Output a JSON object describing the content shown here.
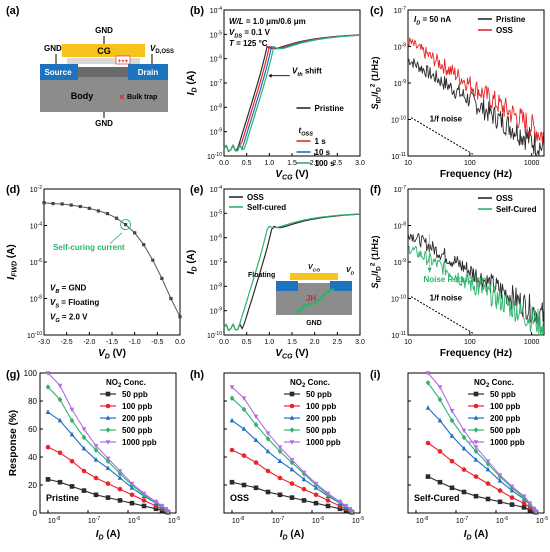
{
  "panel_labels": [
    "(a)",
    "(b)",
    "(c)",
    "(d)",
    "(e)",
    "(f)",
    "(g)",
    "(h)",
    "(i)"
  ],
  "colors": {
    "black": "#2b2b2b",
    "red": "#e8262a",
    "blue": "#1f6fc4",
    "green": "#2db36b",
    "purple": "#b46be6",
    "gold": "#f7c21a",
    "blue_region": "#1e73be",
    "body_gray": "#8c8c8c",
    "trap": "#e02020"
  },
  "device": {
    "gnd_top": "GND",
    "gnd_left": "GND",
    "gnd_bottom": "GND",
    "cg": "CG",
    "vd_oss": "V",
    "vd_oss_sub": "D,OSS",
    "source": "Source",
    "drain": "Drain",
    "body": "Body",
    "bulk_trap": "Bulk trap"
  },
  "inset_e": {
    "floating": "Floating",
    "vcg": "V",
    "vcg_sub": "CG",
    "vd": "V",
    "vd_sub": "D",
    "jh": "JH",
    "gnd": "GND"
  },
  "chart_data": [
    {
      "panel": "b",
      "type": "line",
      "xlabel": "V",
      "xlabel_sub": "CG",
      "xlabel_unit": " (V)",
      "ylabel": "I",
      "ylabel_sub": "D",
      "ylabel_unit": " (A)",
      "xlim": [
        0.0,
        3.0
      ],
      "ylim_log10": [
        -10,
        -4
      ],
      "xticks": [
        "0.0",
        "0.5",
        "1.0",
        "1.5",
        "2.0",
        "2.5",
        "3.0"
      ],
      "yticks_exp": [
        "-10",
        "-9",
        "-8",
        "-7",
        "-6",
        "-5",
        "-4"
      ],
      "annotations": [
        "W/L = 1.0 μm/0.6 μm",
        "V_DS = 0.1 V",
        "T = 125 °C",
        "V_th shift",
        "t_OSS"
      ],
      "legend_title": "t_OSS",
      "series": [
        {
          "name": "Pristine",
          "color": "black",
          "vth": 0.9
        },
        {
          "name": "1 s",
          "color": "red",
          "vth": 0.95
        },
        {
          "name": "10 s",
          "color": "blue",
          "vth": 1.0
        },
        {
          "name": "100 s",
          "color": "green",
          "vth": 1.05
        }
      ],
      "curve": {
        "ioff_log10": -9.7,
        "ion_log10": -4.95,
        "ss_decades_per_v": 6.0
      }
    },
    {
      "panel": "c",
      "type": "line",
      "xlabel": "Frequency (Hz)",
      "ylabel": "S_ID/I_D^2 (1/Hz)",
      "xlim_log10": [
        1,
        3.2
      ],
      "ylim_log10": [
        -11,
        -7
      ],
      "xticks": [
        "10",
        "100",
        "1000"
      ],
      "yticks_exp": [
        "-11",
        "-10",
        "-9",
        "-8",
        "-7"
      ],
      "annotations": [
        "I_D = 50 nA",
        "1/f noise"
      ],
      "series": [
        {
          "name": "Pristine",
          "color": "black",
          "start_log10": -8.35,
          "end_log10": -10.8
        },
        {
          "name": "OSS",
          "color": "red",
          "start_log10": -7.85,
          "end_log10": -10.45
        }
      ]
    },
    {
      "panel": "d",
      "type": "line",
      "xlabel": "V_D (V)",
      "ylabel": "I_FWD (A)",
      "xlim": [
        -3.0,
        0.0
      ],
      "ylim_log10": [
        -10,
        -2
      ],
      "xticks": [
        "-3.0",
        "-2.5",
        "-2.0",
        "-1.5",
        "-1.0",
        "-0.5",
        "0.0"
      ],
      "yticks_exp": [
        "-10",
        "-8",
        "-6",
        "-4",
        "-2"
      ],
      "annotations": [
        "Self-curing current",
        "V_B = GND",
        "V_S = Floating",
        "V_G = 2.0 V"
      ],
      "x": [
        -3.0,
        -2.8,
        -2.6,
        -2.4,
        -2.2,
        -2.0,
        -1.8,
        -1.6,
        -1.4,
        -1.2,
        -1.0,
        -0.8,
        -0.6,
        -0.4,
        -0.2,
        0.0
      ],
      "y_log10": [
        -2.75,
        -2.8,
        -2.82,
        -2.88,
        -2.96,
        -3.06,
        -3.2,
        -3.35,
        -3.6,
        -3.95,
        -4.4,
        -5.05,
        -5.9,
        -6.9,
        -8.0,
        -9.0
      ]
    },
    {
      "panel": "e",
      "type": "line",
      "xlabel": "V",
      "xlabel_sub": "CG",
      "xlabel_unit": " (V)",
      "ylabel": "I",
      "ylabel_sub": "D",
      "ylabel_unit": " (A)",
      "xlim": [
        0.0,
        3.0
      ],
      "ylim_log10": [
        -10,
        -4
      ],
      "xticks": [
        "0.0",
        "0.5",
        "1.0",
        "1.5",
        "2.0",
        "2.5",
        "3.0"
      ],
      "yticks_exp": [
        "-10",
        "-9",
        "-8",
        "-7",
        "-6",
        "-5",
        "-4"
      ],
      "series": [
        {
          "name": "OSS",
          "color": "black",
          "vth": 1.02
        },
        {
          "name": "Self-cured",
          "color": "green",
          "vth": 0.92
        }
      ],
      "curve": {
        "ioff_log10": -9.7,
        "ion_log10": -4.95,
        "ss_decades_per_v": 6.0
      }
    },
    {
      "panel": "f",
      "type": "line",
      "xlabel": "Frequency (Hz)",
      "ylabel": "S_ID/I_D^2 (1/Hz)",
      "xlim_log10": [
        1,
        3.2
      ],
      "ylim_log10": [
        -11,
        -7
      ],
      "xticks": [
        "10",
        "100",
        "1000"
      ],
      "yticks_exp": [
        "-11",
        "-10",
        "-9",
        "-8",
        "-7"
      ],
      "annotations": [
        "Noise Reduction",
        "1/f noise"
      ],
      "series": [
        {
          "name": "OSS",
          "color": "black",
          "start_log10": -8.2,
          "end_log10": -10.5
        },
        {
          "name": "Self-Cured",
          "color": "green",
          "start_log10": -8.6,
          "end_log10": -10.75
        }
      ]
    },
    {
      "panel": "g",
      "type": "line",
      "label": "Pristine",
      "xlabel": "I_D (A)",
      "ylabel": "Response (%)",
      "xlim_log10": [
        -8.2,
        -4.8
      ],
      "ylim": [
        0,
        100
      ],
      "xticks": [
        "10^-8",
        "10^-7",
        "10^-6",
        "10^-5"
      ],
      "yticks": [
        "0",
        "20",
        "40",
        "60",
        "80",
        "100"
      ],
      "legend_title": "NO2 Conc.",
      "x_log10": [
        -8.0,
        -7.7,
        -7.4,
        -7.1,
        -6.8,
        -6.5,
        -6.2,
        -5.9,
        -5.6,
        -5.3,
        -5.15,
        -5.05,
        -5.0
      ],
      "series": [
        {
          "name": "50 ppb",
          "color": "black",
          "values": [
            24,
            22,
            19,
            16,
            13,
            11,
            9,
            7,
            5,
            3,
            2,
            1,
            0.5
          ]
        },
        {
          "name": "100 ppb",
          "color": "red",
          "values": [
            47,
            43,
            37,
            30,
            25,
            21,
            17,
            13,
            9,
            5,
            3,
            2,
            1
          ]
        },
        {
          "name": "200 ppb",
          "color": "blue",
          "values": [
            72,
            66,
            56,
            46,
            38,
            32,
            25,
            18,
            12,
            7,
            4,
            2,
            1
          ]
        },
        {
          "name": "500 ppb",
          "color": "green",
          "values": [
            90,
            81,
            66,
            54,
            45,
            37,
            28,
            20,
            13,
            8,
            5,
            2,
            1
          ]
        },
        {
          "name": "1000 ppb",
          "color": "purple",
          "values": [
            100,
            91,
            74,
            60,
            48,
            39,
            30,
            21,
            14,
            8,
            5,
            3,
            1
          ]
        }
      ]
    },
    {
      "panel": "h",
      "type": "line",
      "label": "OSS",
      "xlabel": "I_D (A)",
      "xlim_log10": [
        -8.2,
        -4.8
      ],
      "ylim": [
        0,
        100
      ],
      "xticks": [
        "10^-8",
        "10^-7",
        "10^-6",
        "10^-5"
      ],
      "legend_title": "NO2 Conc.",
      "x_log10": [
        -8.0,
        -7.7,
        -7.4,
        -7.1,
        -6.8,
        -6.5,
        -6.2,
        -5.9,
        -5.6,
        -5.3,
        -5.15,
        -5.05,
        -5.0
      ],
      "series": [
        {
          "name": "50 ppb",
          "color": "black",
          "values": [
            22,
            20,
            18,
            15,
            13,
            11,
            9,
            7,
            5,
            3,
            2,
            1,
            0.5
          ]
        },
        {
          "name": "100 ppb",
          "color": "red",
          "values": [
            45,
            41,
            36,
            30,
            25,
            21,
            17,
            13,
            9,
            5,
            3,
            2,
            1
          ]
        },
        {
          "name": "200 ppb",
          "color": "blue",
          "values": [
            66,
            60,
            52,
            44,
            37,
            31,
            24,
            18,
            12,
            7,
            4,
            2,
            1
          ]
        },
        {
          "name": "500 ppb",
          "color": "green",
          "values": [
            82,
            74,
            63,
            53,
            44,
            36,
            28,
            20,
            13,
            8,
            5,
            2,
            1
          ]
        },
        {
          "name": "1000 ppb",
          "color": "purple",
          "values": [
            90,
            82,
            69,
            57,
            47,
            38,
            29,
            21,
            14,
            8,
            5,
            3,
            1
          ]
        }
      ]
    },
    {
      "panel": "i",
      "type": "line",
      "label": "Self-Cured",
      "xlabel": "I_D (A)",
      "xlim_log10": [
        -8.2,
        -4.8
      ],
      "ylim": [
        0,
        100
      ],
      "xticks": [
        "10^-8",
        "10^-7",
        "10^-6",
        "10^-5"
      ],
      "legend_title": "NO2 Conc.",
      "x_log10": [
        -7.7,
        -7.4,
        -7.1,
        -6.8,
        -6.5,
        -6.2,
        -5.9,
        -5.6,
        -5.3,
        -5.15,
        -5.05,
        -5.0
      ],
      "series": [
        {
          "name": "50 ppb",
          "color": "black",
          "values": [
            26,
            22,
            18,
            15,
            12,
            10,
            8,
            6,
            4,
            2,
            1,
            0.5
          ]
        },
        {
          "name": "100 ppb",
          "color": "red",
          "values": [
            50,
            44,
            37,
            31,
            26,
            21,
            16,
            11,
            7,
            4,
            2,
            1
          ]
        },
        {
          "name": "200 ppb",
          "color": "blue",
          "values": [
            75,
            66,
            55,
            46,
            38,
            31,
            23,
            16,
            10,
            6,
            3,
            1
          ]
        },
        {
          "name": "500 ppb",
          "color": "green",
          "values": [
            93,
            81,
            66,
            54,
            44,
            35,
            26,
            18,
            11,
            6,
            3,
            1
          ]
        },
        {
          "name": "1000 ppb",
          "color": "purple",
          "values": [
            100,
            90,
            73,
            59,
            47,
            37,
            27,
            19,
            12,
            7,
            3,
            1
          ]
        }
      ]
    }
  ]
}
